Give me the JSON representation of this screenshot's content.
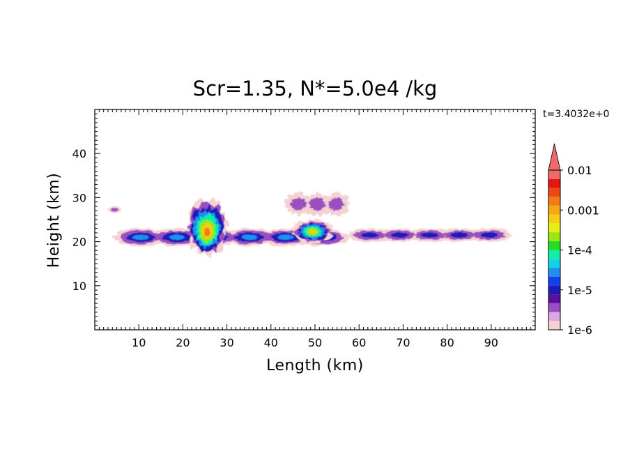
{
  "chart_data": {
    "type": "heatmap",
    "title": "Scr=1.35, N*=5.0e4 /kg",
    "time_label": "t=3.4032e+0",
    "xlabel": "Length  (km)",
    "ylabel": "Height  (km)",
    "xlim": [
      0,
      100
    ],
    "ylim": [
      0,
      50
    ],
    "x_ticks": [
      10,
      20,
      30,
      40,
      50,
      60,
      70,
      80,
      90
    ],
    "y_ticks": [
      10,
      20,
      30,
      40
    ],
    "colorbar": {
      "scale": "log",
      "range": [
        1e-06,
        0.01
      ],
      "tick_labels": [
        "0.01",
        "0.001",
        "1e-4",
        "1e-5",
        "1e-6"
      ],
      "colors": [
        "#f4d2d2",
        "#d8a8e0",
        "#9a4fc0",
        "#5a0f9c",
        "#1c1ab8",
        "#1240ee",
        "#1f8ff0",
        "#14d2e6",
        "#10eea8",
        "#22dd22",
        "#9ae614",
        "#e8ee14",
        "#f7cd12",
        "#f4a814",
        "#f47a14",
        "#ee4914",
        "#e81414",
        "#ee6a6a"
      ]
    },
    "features": [
      {
        "name": "main-layer",
        "x": [
          2,
          60
        ],
        "y": [
          19,
          23
        ],
        "peak": 3e-05
      },
      {
        "name": "convective-core",
        "x": [
          21,
          30
        ],
        "y": [
          17,
          30
        ],
        "peak": 0.003
      },
      {
        "name": "secondary-cell",
        "x": [
          45,
          54
        ],
        "y": [
          19.5,
          25
        ],
        "peak": 0.001
      },
      {
        "name": "east-layer",
        "x": [
          56,
          96
        ],
        "y": [
          20,
          23
        ],
        "peak": 2e-05
      },
      {
        "name": "small-patch-west",
        "x": [
          3,
          6
        ],
        "y": [
          26.5,
          28
        ],
        "peak": 5e-06
      },
      {
        "name": "upper-patches",
        "x": [
          43,
          58
        ],
        "y": [
          26,
          31
        ],
        "peak": 8e-06
      }
    ]
  }
}
